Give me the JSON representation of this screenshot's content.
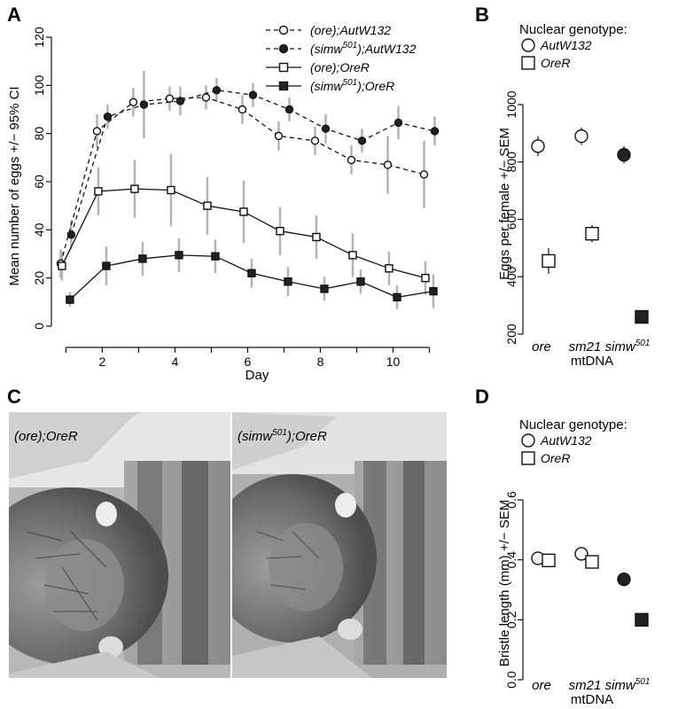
{
  "figure": {
    "panels": {
      "A": {
        "letter": "A"
      },
      "B": {
        "letter": "B"
      },
      "C": {
        "letter": "C",
        "photo_left_caption": "(ore);OreR",
        "photo_right_caption": "(simw501);OreR",
        "photo_left_caption_parts": [
          "(ore);OreR"
        ],
        "photo_right_caption_parts": [
          "(simw",
          "501",
          ");OreR"
        ]
      },
      "D": {
        "letter": "D"
      }
    }
  },
  "chart_data": [
    {
      "id": "A",
      "type": "line",
      "xlabel": "Day",
      "ylabel": "Mean number of eggs +/− 95% CI",
      "xlim": [
        0.6,
        11.5
      ],
      "ylim": [
        0,
        120
      ],
      "xticks": [
        2,
        4,
        6,
        8,
        10
      ],
      "yticks": [
        0,
        20,
        40,
        60,
        80,
        100,
        120
      ],
      "legend_position": "top-right",
      "series": [
        {
          "name": "(ore);AutW132",
          "name_parts": [
            "(ore);AutW132"
          ],
          "marker": "open-circle",
          "line": "dashed",
          "x": [
            1,
            2,
            3,
            4,
            5,
            6,
            7,
            8,
            9,
            10,
            11
          ],
          "y": [
            26,
            81,
            93,
            94.5,
            95,
            90,
            79,
            77,
            69,
            67,
            63
          ],
          "err": [
            6,
            7,
            6,
            5,
            5,
            6,
            6,
            6,
            6,
            12,
            14
          ]
        },
        {
          "name": "(simw501);AutW132",
          "name_parts": [
            "(simw",
            "501",
            ");AutW132"
          ],
          "marker": "filled-circle",
          "line": "dashed",
          "x": [
            1,
            2,
            3,
            4,
            5,
            6,
            7,
            8,
            9,
            10,
            11
          ],
          "y": [
            38,
            87,
            92,
            93.5,
            98,
            96,
            90,
            82,
            77,
            84.5,
            81
          ],
          "err": [
            6,
            5,
            14,
            6,
            5,
            5,
            5,
            6,
            5,
            7,
            6
          ]
        },
        {
          "name": "(ore);OreR",
          "name_parts": [
            "(ore);OreR"
          ],
          "marker": "open-square",
          "line": "solid",
          "x": [
            1,
            2,
            3,
            4,
            5,
            6,
            7,
            8,
            9,
            10,
            11
          ],
          "y": [
            25,
            56,
            57,
            56.5,
            50,
            47.5,
            39.5,
            37,
            29.5,
            24,
            20
          ],
          "err": [
            6,
            10,
            12,
            15,
            12,
            13,
            10,
            9,
            9,
            7,
            7
          ]
        },
        {
          "name": "(simw501);OreR",
          "name_parts": [
            "(simw",
            "501",
            ");OreR"
          ],
          "marker": "filled-square",
          "line": "solid",
          "x": [
            1,
            2,
            3,
            4,
            5,
            6,
            7,
            8,
            9,
            10,
            11
          ],
          "y": [
            11,
            25,
            28,
            29.5,
            29,
            22,
            18.5,
            15.5,
            18.5,
            12,
            14.5
          ],
          "err": [
            3,
            8,
            7,
            7,
            7,
            6,
            6,
            5,
            5,
            5,
            7
          ]
        }
      ]
    },
    {
      "id": "B",
      "type": "scatter",
      "ylabel": "Eggs per female +/− SEM",
      "xlabel": "mtDNA",
      "categories": [
        "ore",
        "sm21",
        "simw501"
      ],
      "category_parts": [
        [
          "ore"
        ],
        [
          "sm21"
        ],
        [
          "simw",
          "501"
        ]
      ],
      "ylim": [
        200,
        1000
      ],
      "yticks": [
        200,
        400,
        600,
        800,
        1000
      ],
      "legend_title": "Nuclear genotype:",
      "legend_position": "top-left",
      "series": [
        {
          "name": "AutW132",
          "marker": "circle",
          "values": [
            855,
            890,
            825
          ],
          "filled": [
            false,
            false,
            true
          ],
          "err": [
            35,
            30,
            30
          ]
        },
        {
          "name": "OreR",
          "marker": "square",
          "values": [
            455,
            550,
            260
          ],
          "filled": [
            false,
            false,
            true
          ],
          "err": [
            45,
            30,
            22
          ]
        }
      ]
    },
    {
      "id": "D",
      "type": "scatter",
      "ylabel": "Bristle length (mm) +/− SEM",
      "xlabel": "mtDNA",
      "categories": [
        "ore",
        "sm21",
        "simw501"
      ],
      "category_parts": [
        [
          "ore"
        ],
        [
          "sm21"
        ],
        [
          "simw",
          "501"
        ]
      ],
      "ylim": [
        0,
        0.6
      ],
      "yticks": [
        "0.0",
        "0.2",
        "0.4",
        "0.6"
      ],
      "legend_title": "Nuclear genotype:",
      "legend_position": "top-left",
      "series": [
        {
          "name": "AutW132",
          "marker": "circle",
          "values": [
            0.405,
            0.42,
            0.335
          ],
          "filled": [
            false,
            false,
            true
          ]
        },
        {
          "name": "OreR",
          "marker": "square",
          "values": [
            0.398,
            0.393,
            0.2
          ],
          "filled": [
            false,
            false,
            true
          ]
        }
      ]
    }
  ],
  "colors": {
    "axis": "#111111",
    "errorbar": "#b3b3b3",
    "filled_marker": "#222222",
    "photo_bg": "#9a9a9a"
  }
}
